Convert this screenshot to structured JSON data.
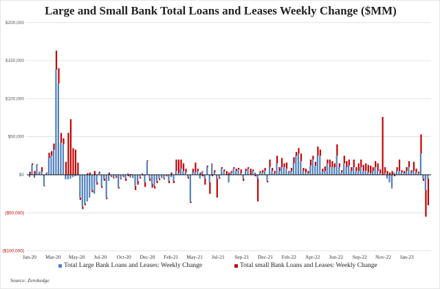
{
  "chart_data": {
    "type": "bar",
    "title": "Large and Small Bank Total Loans and Leases Weekly Change ($MM)",
    "xlabel": "",
    "ylabel": "",
    "ylim": [
      -100000,
      200000
    ],
    "yticks": [
      200000,
      150000,
      100000,
      50000,
      0,
      -50000,
      -100000
    ],
    "ytick_labels": [
      "$200,000",
      "$150,000",
      "$100,000",
      "$50,000",
      "$0",
      "($50,000)",
      "($100,000)"
    ],
    "xtick_labels": [
      "Jan-20",
      "Mar-20",
      "May-20",
      "Jul-20",
      "Oct-20",
      "Dec-20",
      "Feb-21",
      "May-21",
      "Jul-21",
      "Sep-21",
      "Dec-21",
      "Feb-22",
      "Apr-22",
      "Jun-22",
      "Sep-22",
      "Nov-22",
      "Jan-23"
    ],
    "grid": true,
    "legend_position": "bottom",
    "source": "Source: Zerohedge",
    "series": [
      {
        "name": "Total Large Bank Loans and Leases: Weekly Change",
        "color": "#4f81bd",
        "values": [
          -3000,
          13000,
          -4000,
          13000,
          3000,
          4000,
          -14000,
          2000,
          22000,
          25000,
          33000,
          138000,
          120000,
          42000,
          40000,
          -6000,
          -6000,
          -5000,
          -3000,
          -2000,
          -1000,
          -30000,
          -42000,
          -38000,
          -35000,
          -30000,
          -20000,
          -25000,
          -10000,
          2000,
          -15000,
          -5000,
          -30000,
          -8000,
          -2000,
          -4000,
          -2000,
          -16000,
          -5000,
          -2000,
          -5000,
          2000,
          -4000,
          -3000,
          -15000,
          -8000,
          -3000,
          2000,
          -10000,
          18000,
          -5000,
          -12000,
          -15000,
          -8000,
          -5000,
          -3000,
          -5000,
          -1000,
          -8000,
          -3000,
          -8000,
          5000,
          2000,
          8000,
          5000,
          3000,
          -3000,
          -35000,
          3000,
          4000,
          5000,
          -5000,
          5000,
          -5000,
          10000,
          -10000,
          15000,
          3000,
          -5000,
          -3000,
          8000,
          5000,
          0,
          -10000,
          3000,
          8000,
          5000,
          7000,
          2000,
          -5000,
          5000,
          8000,
          0,
          5000,
          3000,
          -5000,
          3000,
          3000,
          5000,
          -8000,
          10000,
          5000,
          2000,
          15000,
          5000,
          10000,
          10000,
          8000,
          3000,
          5000,
          15000,
          25000,
          28000,
          18000,
          5000,
          3000,
          2000,
          12000,
          20000,
          12000,
          25000,
          25000,
          4000,
          5000,
          15000,
          10000,
          10000,
          10000,
          25000,
          10000,
          3000,
          15000,
          10000,
          12000,
          5000,
          10000,
          5000,
          5000,
          10000,
          5000,
          5000,
          3000,
          2000,
          5000,
          10000,
          5000,
          2000,
          0,
          2000,
          -5000,
          -10000,
          -18000,
          3000,
          5000,
          5000,
          3000,
          2000,
          5000,
          10000,
          3000,
          5000,
          3000,
          2000,
          28000,
          -5000,
          -20000,
          -5000
        ]
      },
      {
        "name": "Total small Bank Loans and Leases: Weekly Change",
        "color": "#c00000",
        "values": [
          4000,
          2000,
          5000,
          1000,
          1000,
          6000,
          -1000,
          1000,
          7000,
          6000,
          8000,
          25000,
          20000,
          13000,
          8000,
          17000,
          55000,
          73000,
          35000,
          33000,
          16000,
          -3000,
          -3000,
          -2000,
          2000,
          3000,
          -3000,
          5000,
          -3000,
          2000,
          -2000,
          -3000,
          -2000,
          3000,
          -1000,
          -1000,
          -2000,
          -2000,
          -1000,
          -1000,
          -3000,
          -2000,
          1000,
          -1000,
          -5000,
          -5000,
          -2000,
          -1000,
          -6000,
          1000,
          -3000,
          -5000,
          -3000,
          -3000,
          -2000,
          -1000,
          -1000,
          -1000,
          -3000,
          3000,
          -3000,
          15000,
          18000,
          12000,
          10000,
          5000,
          -2000,
          -2000,
          5000,
          12000,
          3000,
          3000,
          -2000,
          -8000,
          2000,
          -15000,
          -2000,
          3000,
          -25000,
          -2000,
          2000,
          2000,
          5000,
          3000,
          2000,
          2000,
          3000,
          2000,
          5000,
          -3000,
          3000,
          2000,
          8000,
          2000,
          -2000,
          -30000,
          2000,
          3000,
          4000,
          -2000,
          10000,
          4000,
          3000,
          10000,
          5000,
          12000,
          5000,
          8000,
          2000,
          4000,
          8000,
          5000,
          7000,
          10000,
          4000,
          5000,
          3000,
          8000,
          5000,
          5000,
          12000,
          8000,
          4000,
          6000,
          5000,
          10000,
          8000,
          5000,
          15000,
          5000,
          3000,
          10000,
          8000,
          8000,
          5000,
          10000,
          5000,
          10000,
          10000,
          8000,
          10000,
          10000,
          10000,
          5000,
          8000,
          10000,
          5000,
          76000,
          8000,
          5000,
          3000,
          5000,
          -2000,
          5000,
          15000,
          3000,
          3000,
          5000,
          8000,
          3000,
          12000,
          5000,
          2000,
          25000,
          -3000,
          -35000,
          -35000
        ]
      }
    ]
  }
}
